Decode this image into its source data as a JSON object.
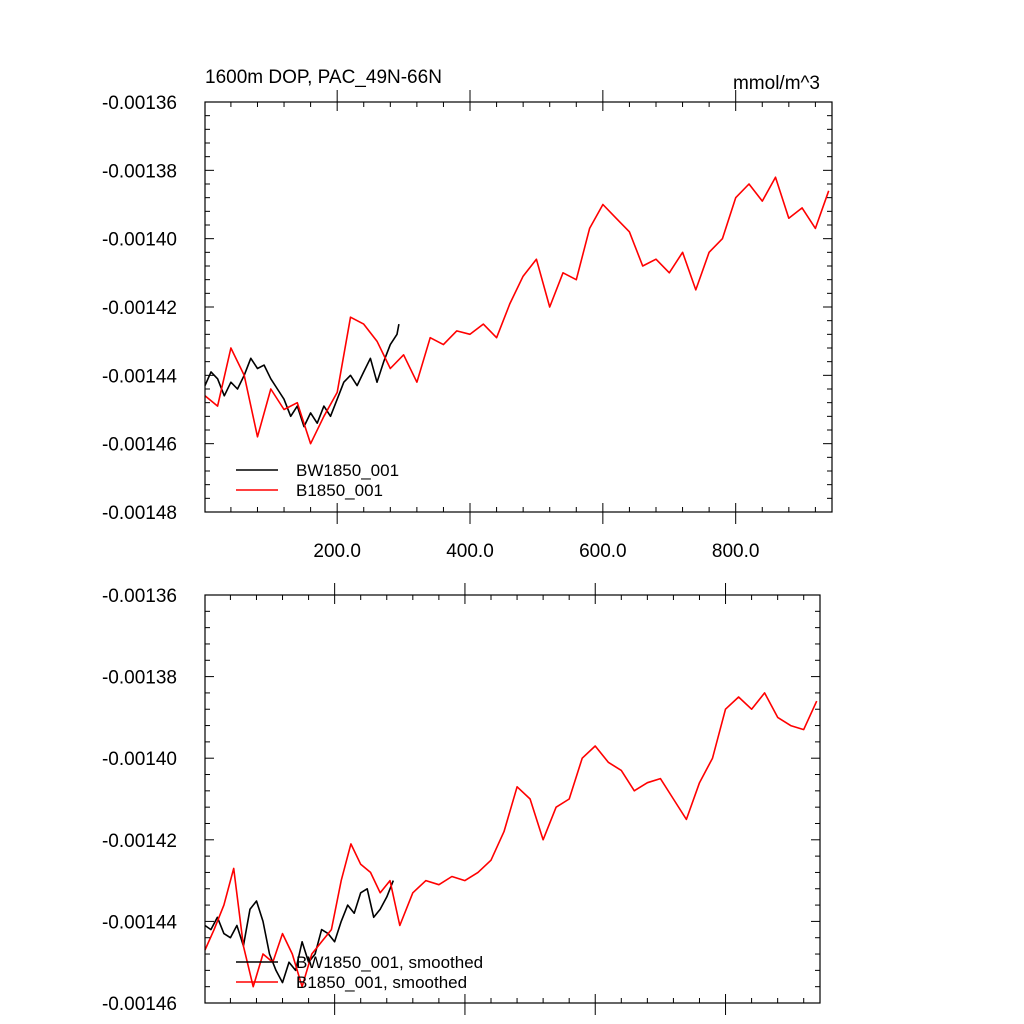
{
  "colors": {
    "bw": "#000000",
    "b": "#ff0000",
    "axis": "#000000"
  },
  "chart_data": [
    {
      "type": "line",
      "title": "1600m DOP, PAC_49N-66N",
      "units_label": "mmol/m^3",
      "xlabel": "",
      "ylabel": "",
      "xlim": [
        1,
        945
      ],
      "ylim": [
        -0.00148,
        -0.00136
      ],
      "y_ticks": [
        {
          "value": -0.00136,
          "label": "-0.00136"
        },
        {
          "value": -0.00138,
          "label": "-0.00138"
        },
        {
          "value": -0.0014,
          "label": "-0.00140"
        },
        {
          "value": -0.00142,
          "label": "-0.00142"
        },
        {
          "value": -0.00144,
          "label": "-0.00144"
        },
        {
          "value": -0.00146,
          "label": "-0.00146"
        },
        {
          "value": -0.00148,
          "label": "-0.00148"
        }
      ],
      "x_ticks": [
        {
          "value": 200,
          "label": "200.0"
        },
        {
          "value": 400,
          "label": "400.0"
        },
        {
          "value": 600,
          "label": "600.0"
        },
        {
          "value": 800,
          "label": "800.0"
        }
      ],
      "grid": false,
      "legend": "bottom-left",
      "series": [
        {
          "name": "BW1850_001",
          "color": "#000000",
          "x": [
            1,
            10,
            20,
            30,
            40,
            50,
            60,
            70,
            80,
            90,
            100,
            110,
            120,
            130,
            140,
            150,
            160,
            170,
            180,
            190,
            200,
            210,
            220,
            230,
            240,
            250,
            260,
            270,
            280,
            290,
            293
          ],
          "y": [
            -0.001443,
            -0.001439,
            -0.001441,
            -0.001446,
            -0.001442,
            -0.001444,
            -0.00144,
            -0.001435,
            -0.001438,
            -0.001437,
            -0.001441,
            -0.001444,
            -0.001447,
            -0.001452,
            -0.001449,
            -0.001455,
            -0.001451,
            -0.001454,
            -0.001449,
            -0.001452,
            -0.001447,
            -0.001442,
            -0.00144,
            -0.001443,
            -0.001439,
            -0.001435,
            -0.001442,
            -0.001436,
            -0.001431,
            -0.001428,
            -0.001425
          ]
        },
        {
          "name": "B1850_001",
          "color": "#ff0000",
          "x": [
            1,
            20,
            40,
            60,
            80,
            100,
            120,
            140,
            160,
            180,
            200,
            220,
            240,
            260,
            280,
            300,
            320,
            340,
            360,
            380,
            400,
            420,
            440,
            460,
            480,
            500,
            520,
            540,
            560,
            580,
            600,
            620,
            640,
            660,
            680,
            700,
            720,
            740,
            760,
            780,
            800,
            820,
            840,
            860,
            880,
            900,
            920,
            940
          ],
          "y": [
            -0.001446,
            -0.001449,
            -0.001432,
            -0.00144,
            -0.001458,
            -0.001444,
            -0.00145,
            -0.001448,
            -0.00146,
            -0.001452,
            -0.001445,
            -0.001423,
            -0.001425,
            -0.00143,
            -0.001438,
            -0.001434,
            -0.001442,
            -0.001429,
            -0.001431,
            -0.001427,
            -0.001428,
            -0.001425,
            -0.001429,
            -0.001419,
            -0.001411,
            -0.001406,
            -0.00142,
            -0.00141,
            -0.001412,
            -0.001397,
            -0.00139,
            -0.001394,
            -0.001398,
            -0.001408,
            -0.001406,
            -0.00141,
            -0.001404,
            -0.001415,
            -0.001404,
            -0.0014,
            -0.001388,
            -0.001384,
            -0.001389,
            -0.001382,
            -0.001394,
            -0.001391,
            -0.001397,
            -0.001386
          ]
        }
      ],
      "legend_entries": [
        "BW1850_001",
        "B1850_001"
      ]
    },
    {
      "type": "line",
      "title": "",
      "xlabel": "",
      "ylabel": "",
      "xlim": [
        1,
        945
      ],
      "ylim": [
        -0.00146,
        -0.00136
      ],
      "y_ticks": [
        {
          "value": -0.00136,
          "label": "-0.00136"
        },
        {
          "value": -0.00138,
          "label": "-0.00138"
        },
        {
          "value": -0.0014,
          "label": "-0.00140"
        },
        {
          "value": -0.00142,
          "label": "-0.00142"
        },
        {
          "value": -0.00144,
          "label": "-0.00144"
        },
        {
          "value": -0.00146,
          "label": "-0.00146"
        }
      ],
      "x_ticks": [
        {
          "value": 200,
          "label": ""
        },
        {
          "value": 400,
          "label": ""
        },
        {
          "value": 600,
          "label": ""
        },
        {
          "value": 800,
          "label": ""
        }
      ],
      "grid": false,
      "legend": "bottom-left",
      "series": [
        {
          "name": "BW1850_001, smoothed",
          "color": "#000000",
          "x": [
            1,
            10,
            20,
            30,
            40,
            50,
            60,
            70,
            80,
            90,
            100,
            110,
            120,
            130,
            140,
            150,
            160,
            170,
            180,
            190,
            200,
            210,
            220,
            230,
            240,
            250,
            260,
            270,
            280,
            290
          ],
          "y": [
            -0.001441,
            -0.001442,
            -0.001439,
            -0.001443,
            -0.001444,
            -0.001441,
            -0.001446,
            -0.001437,
            -0.001435,
            -0.00144,
            -0.001448,
            -0.001452,
            -0.001455,
            -0.00145,
            -0.001452,
            -0.001445,
            -0.00145,
            -0.001448,
            -0.001442,
            -0.001443,
            -0.001445,
            -0.00144,
            -0.001436,
            -0.001438,
            -0.001433,
            -0.001432,
            -0.001439,
            -0.001437,
            -0.001434,
            -0.00143
          ]
        },
        {
          "name": "B1850_001, smoothed",
          "color": "#ff0000",
          "x": [
            1,
            15,
            30,
            45,
            60,
            75,
            90,
            105,
            120,
            135,
            150,
            165,
            180,
            195,
            210,
            225,
            240,
            255,
            270,
            285,
            300,
            320,
            340,
            360,
            380,
            400,
            420,
            440,
            460,
            480,
            500,
            520,
            540,
            560,
            580,
            600,
            620,
            640,
            660,
            680,
            700,
            720,
            740,
            760,
            780,
            800,
            820,
            840,
            860,
            880,
            900,
            920,
            940
          ],
          "y": [
            -0.001447,
            -0.001442,
            -0.001436,
            -0.001427,
            -0.001446,
            -0.001456,
            -0.001448,
            -0.00145,
            -0.001443,
            -0.001448,
            -0.001456,
            -0.001448,
            -0.001445,
            -0.001442,
            -0.00143,
            -0.001421,
            -0.001426,
            -0.001428,
            -0.001433,
            -0.00143,
            -0.001441,
            -0.001433,
            -0.00143,
            -0.001431,
            -0.001429,
            -0.00143,
            -0.001428,
            -0.001425,
            -0.001418,
            -0.001407,
            -0.00141,
            -0.00142,
            -0.001412,
            -0.00141,
            -0.0014,
            -0.001397,
            -0.001401,
            -0.001403,
            -0.001408,
            -0.001406,
            -0.001405,
            -0.00141,
            -0.001415,
            -0.001406,
            -0.0014,
            -0.001388,
            -0.001385,
            -0.001388,
            -0.001384,
            -0.00139,
            -0.001392,
            -0.001393,
            -0.001386
          ]
        }
      ],
      "legend_entries": [
        "BW1850_001, smoothed",
        "B1850_001, smoothed"
      ]
    }
  ]
}
